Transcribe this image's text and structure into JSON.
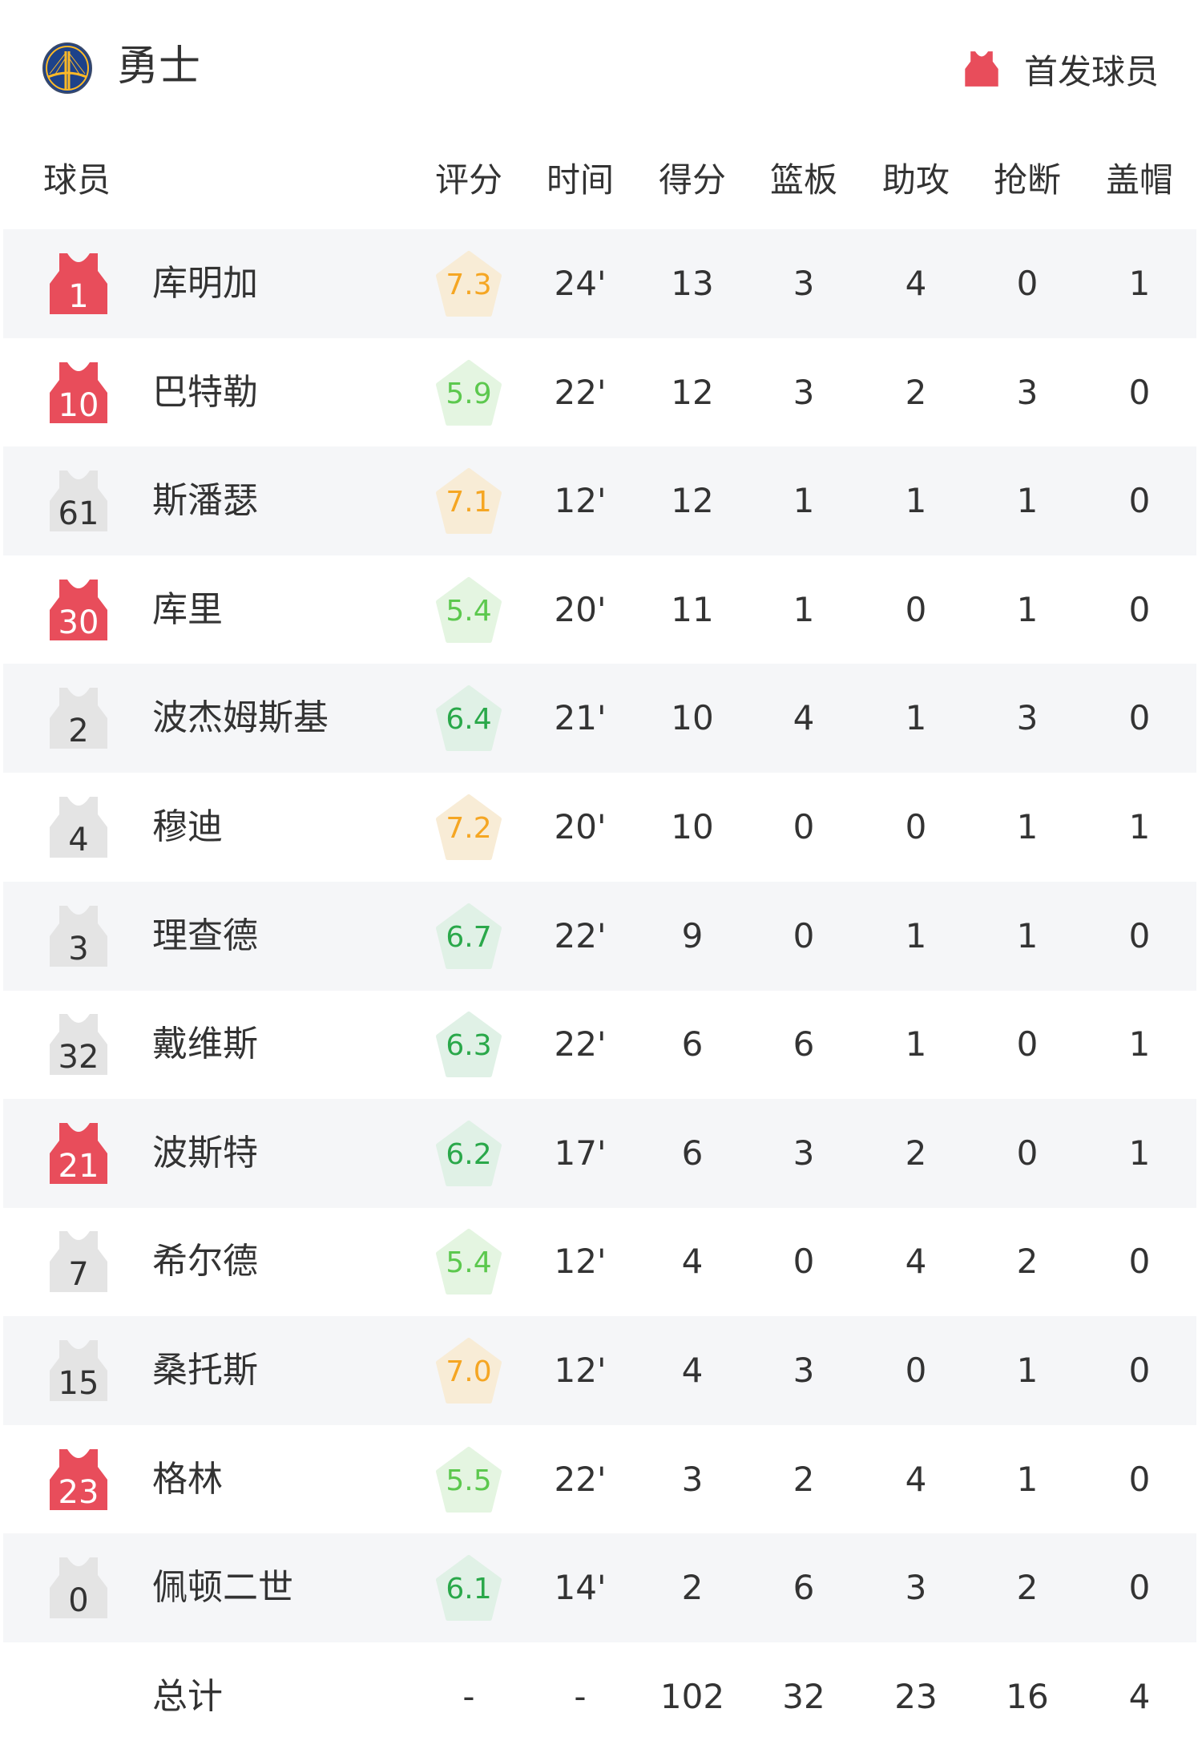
{
  "header": {
    "team_name": "勇士",
    "logo_icon": "warriors-bridge-logo",
    "legend_icon": "starter-jersey-icon",
    "legend_label": "首发球员"
  },
  "colors": {
    "starter": "#e84d5b",
    "bench": "#e4e4e4",
    "rating_high_text": "#f5a623",
    "rating_high_bg": "#f8ecd6",
    "rating_mid_text": "#2aa84a",
    "rating_mid_bg": "#e0f1e6",
    "rating_low_text": "#5cc84e",
    "rating_low_bg": "#e4f5e1",
    "row_alt_bg": "#f5f6f8"
  },
  "columns": [
    "球员",
    "评分",
    "时间",
    "得分",
    "篮板",
    "助攻",
    "抢断",
    "盖帽"
  ],
  "players": [
    {
      "number": "1",
      "name": "库明加",
      "starter": true,
      "rating": "7.3",
      "time": "24'",
      "pts": "13",
      "reb": "3",
      "ast": "4",
      "stl": "0",
      "blk": "1"
    },
    {
      "number": "10",
      "name": "巴特勒",
      "starter": true,
      "rating": "5.9",
      "time": "22'",
      "pts": "12",
      "reb": "3",
      "ast": "2",
      "stl": "3",
      "blk": "0"
    },
    {
      "number": "61",
      "name": "斯潘瑟",
      "starter": false,
      "rating": "7.1",
      "time": "12'",
      "pts": "12",
      "reb": "1",
      "ast": "1",
      "stl": "1",
      "blk": "0"
    },
    {
      "number": "30",
      "name": "库里",
      "starter": true,
      "rating": "5.4",
      "time": "20'",
      "pts": "11",
      "reb": "1",
      "ast": "0",
      "stl": "1",
      "blk": "0"
    },
    {
      "number": "2",
      "name": "波杰姆斯基",
      "starter": false,
      "rating": "6.4",
      "time": "21'",
      "pts": "10",
      "reb": "4",
      "ast": "1",
      "stl": "3",
      "blk": "0"
    },
    {
      "number": "4",
      "name": "穆迪",
      "starter": false,
      "rating": "7.2",
      "time": "20'",
      "pts": "10",
      "reb": "0",
      "ast": "0",
      "stl": "1",
      "blk": "1"
    },
    {
      "number": "3",
      "name": "理查德",
      "starter": false,
      "rating": "6.7",
      "time": "22'",
      "pts": "9",
      "reb": "0",
      "ast": "1",
      "stl": "1",
      "blk": "0"
    },
    {
      "number": "32",
      "name": "戴维斯",
      "starter": false,
      "rating": "6.3",
      "time": "22'",
      "pts": "6",
      "reb": "6",
      "ast": "1",
      "stl": "0",
      "blk": "1"
    },
    {
      "number": "21",
      "name": "波斯特",
      "starter": true,
      "rating": "6.2",
      "time": "17'",
      "pts": "6",
      "reb": "3",
      "ast": "2",
      "stl": "0",
      "blk": "1"
    },
    {
      "number": "7",
      "name": "希尔德",
      "starter": false,
      "rating": "5.4",
      "time": "12'",
      "pts": "4",
      "reb": "0",
      "ast": "4",
      "stl": "2",
      "blk": "0"
    },
    {
      "number": "15",
      "name": "桑托斯",
      "starter": false,
      "rating": "7.0",
      "time": "12'",
      "pts": "4",
      "reb": "3",
      "ast": "0",
      "stl": "1",
      "blk": "0"
    },
    {
      "number": "23",
      "name": "格林",
      "starter": true,
      "rating": "5.5",
      "time": "22'",
      "pts": "3",
      "reb": "2",
      "ast": "4",
      "stl": "1",
      "blk": "0"
    },
    {
      "number": "0",
      "name": "佩顿二世",
      "starter": false,
      "rating": "6.1",
      "time": "14'",
      "pts": "2",
      "reb": "6",
      "ast": "3",
      "stl": "2",
      "blk": "0"
    }
  ],
  "totals": {
    "label": "总计",
    "rating": "-",
    "time": "-",
    "pts": "102",
    "reb": "32",
    "ast": "23",
    "stl": "16",
    "blk": "4"
  }
}
